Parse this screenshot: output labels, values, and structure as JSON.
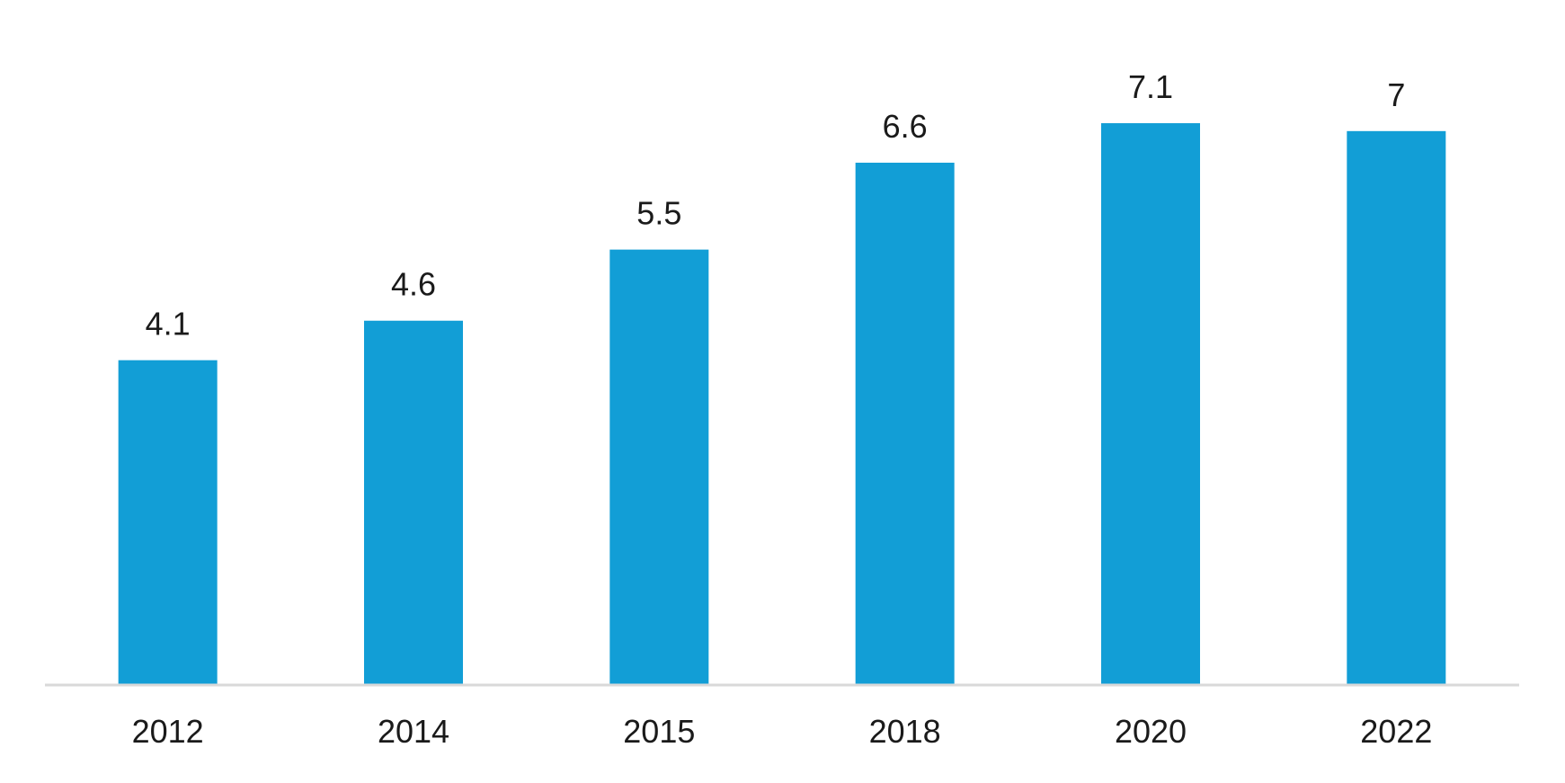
{
  "chart_data": {
    "type": "bar",
    "title": "",
    "xlabel": "",
    "ylabel": "",
    "categories": [
      "2012",
      "2014",
      "2015",
      "2018",
      "2020",
      "2022"
    ],
    "values": [
      4.1,
      4.6,
      5.5,
      6.6,
      7.1,
      7
    ],
    "value_labels": [
      "4.1",
      "4.6",
      "5.5",
      "6.6",
      "7.1",
      "7"
    ],
    "ylim": [
      0,
      8.5
    ],
    "grid": false,
    "legend": "none",
    "colors": {
      "bar": "#129ED6",
      "baseline": "#d9d9d9",
      "text": "#1a1a1a"
    }
  }
}
